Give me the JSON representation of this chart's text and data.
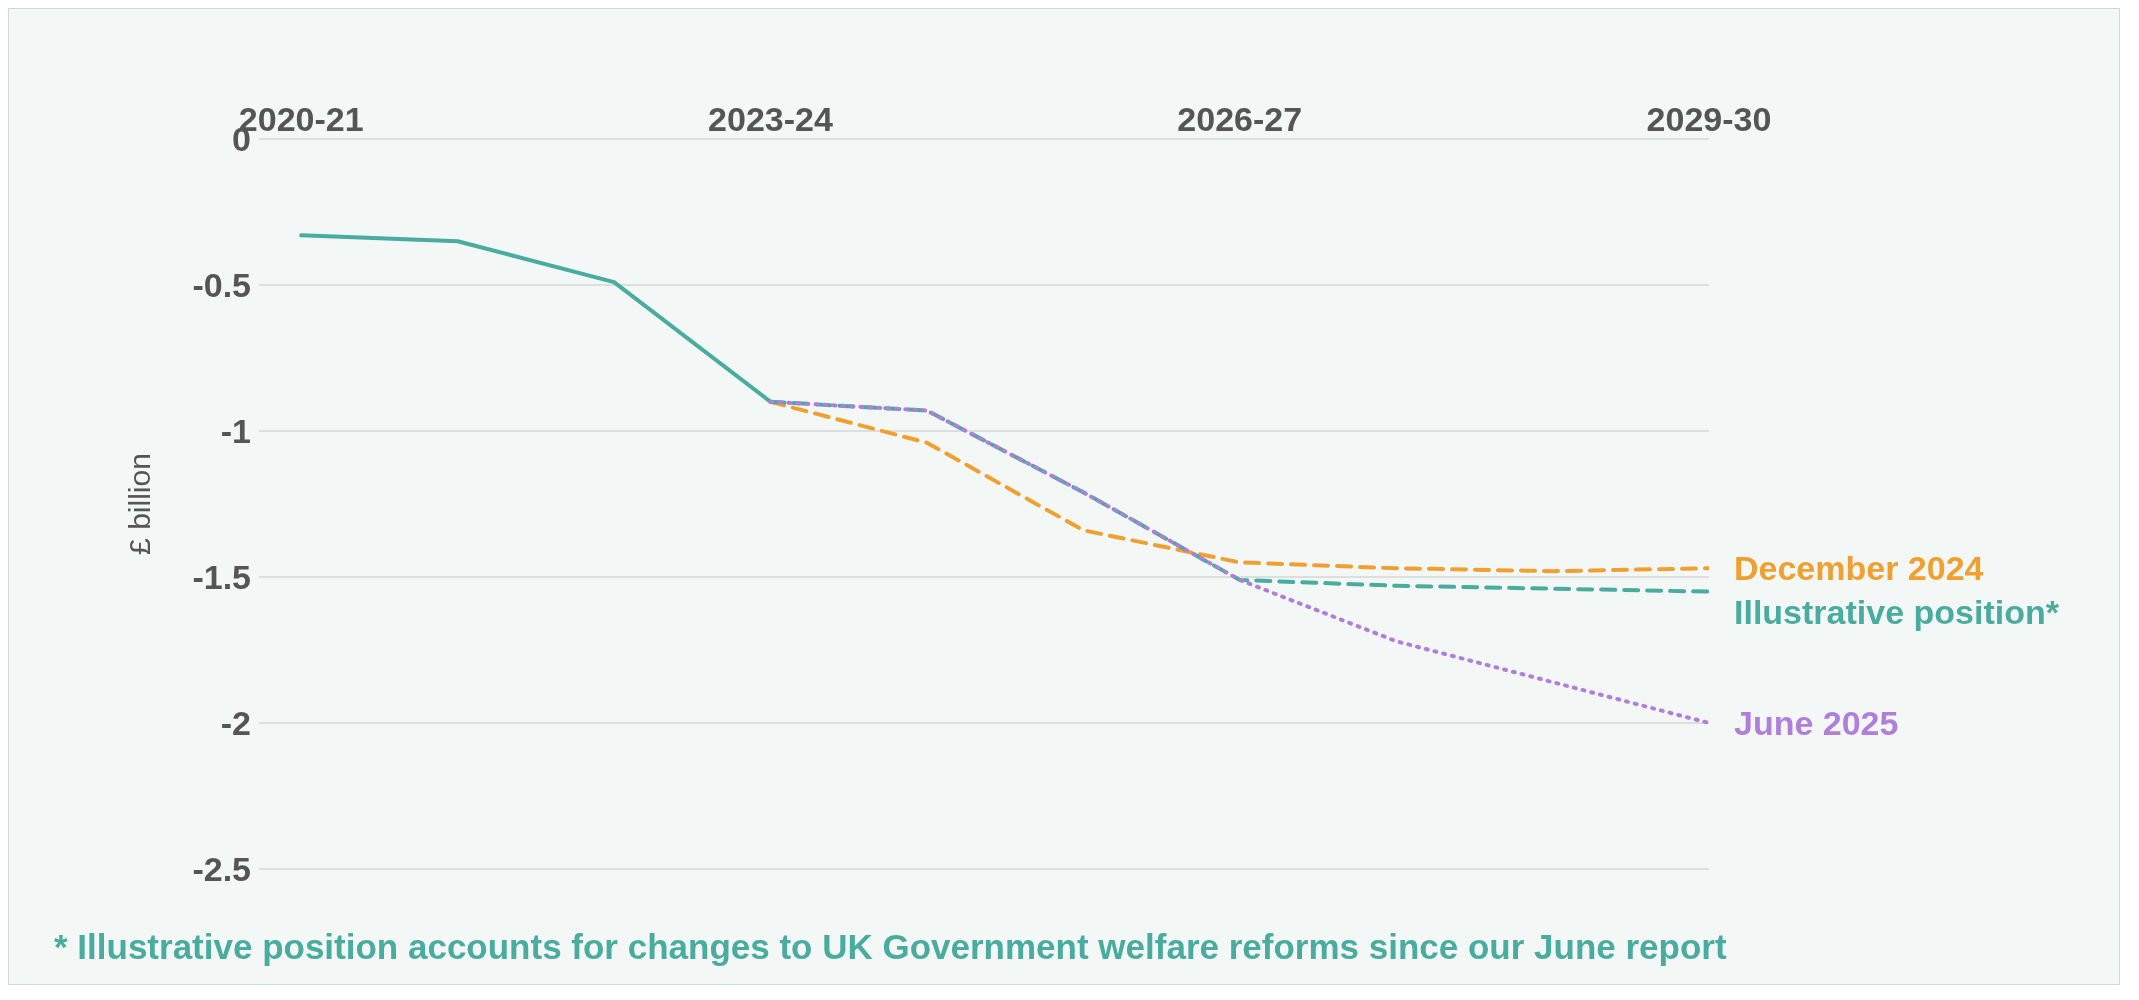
{
  "chart_data": {
    "type": "line",
    "categories": [
      "2020-21",
      null,
      null,
      "2023-24",
      null,
      null,
      "2026-27",
      null,
      null,
      "2029-30"
    ],
    "series": [
      {
        "color": "#4aab9f",
        "line_style": "solid",
        "values": [
          -0.33,
          -0.35,
          -0.49,
          -0.9,
          null,
          null,
          null,
          null,
          null,
          null
        ]
      },
      {
        "name": "December 2024",
        "color": "#f0a030",
        "line_style": "dashed",
        "values": [
          null,
          null,
          null,
          -0.9,
          -1.04,
          -1.34,
          -1.45,
          -1.47,
          -1.48,
          -1.47
        ]
      },
      {
        "name": "Illustrative position*",
        "color": "#4aab9f",
        "line_style": "dashed",
        "values": [
          null,
          null,
          null,
          -0.9,
          -0.93,
          -1.21,
          -1.51,
          -1.53,
          -1.54,
          -1.55
        ]
      },
      {
        "name": "June 2025",
        "color": "#b07fdc",
        "line_style": "dotted",
        "values": [
          null,
          null,
          null,
          -0.9,
          -0.93,
          -1.21,
          -1.51,
          -1.72,
          -1.86,
          -2.0
        ]
      }
    ],
    "ylabel": "£ billion",
    "ylim": [
      -2.5,
      0
    ],
    "yticks": [
      0,
      -0.5,
      -1,
      -1.5,
      -2,
      -2.5
    ],
    "grid": "y",
    "legend": false,
    "marker": "none",
    "annotations": [
      "* Illustrative position accounts for changes to UK Government welfare reforms since our June report"
    ]
  }
}
